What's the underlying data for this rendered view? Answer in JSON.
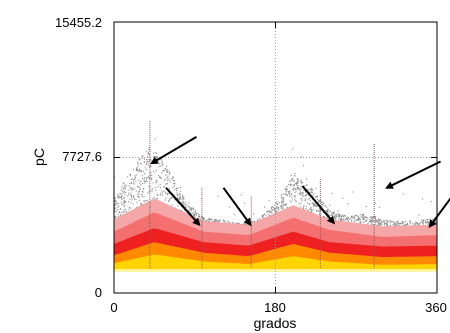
{
  "chart_data": {
    "type": "scatter",
    "title": "",
    "xlabel": "grados",
    "ylabel": "pC",
    "xlim": [
      0,
      360
    ],
    "ylim": [
      0,
      15455.2
    ],
    "x_ticks": [
      0,
      180,
      360
    ],
    "x_tick_labels": [
      "0",
      "180",
      "360"
    ],
    "y_ticks": [
      0,
      7727.6,
      15455.2
    ],
    "y_tick_labels": [
      "0",
      "7727.6",
      "15455.2"
    ],
    "grid": "dotted at 180 and 7727.6",
    "density_bands": [
      {
        "color": "#fff4a0",
        "lower": [
          [
            0,
            1200
          ],
          [
            360,
            1200
          ]
        ],
        "upper": [
          [
            0,
            1350
          ],
          [
            360,
            1350
          ]
        ]
      },
      {
        "color": "#ffd400",
        "lower": [
          [
            0,
            1350
          ],
          [
            360,
            1350
          ]
        ],
        "upper": [
          [
            0,
            1700
          ],
          [
            45,
            2200
          ],
          [
            100,
            1800
          ],
          [
            150,
            1650
          ],
          [
            200,
            2100
          ],
          [
            240,
            1800
          ],
          [
            300,
            1600
          ],
          [
            360,
            1650
          ]
        ]
      },
      {
        "color": "#ff8a00",
        "lower": [
          [
            0,
            1600
          ],
          [
            360,
            1600
          ]
        ],
        "upper": [
          [
            0,
            2150
          ],
          [
            45,
            2900
          ],
          [
            100,
            2300
          ],
          [
            150,
            2100
          ],
          [
            200,
            2800
          ],
          [
            240,
            2300
          ],
          [
            300,
            2050
          ],
          [
            360,
            2100
          ]
        ]
      },
      {
        "color": "#ee2020",
        "lower": [
          [
            0,
            2000
          ],
          [
            360,
            2000
          ]
        ],
        "upper": [
          [
            0,
            2800
          ],
          [
            45,
            3700
          ],
          [
            100,
            2900
          ],
          [
            150,
            2700
          ],
          [
            200,
            3500
          ],
          [
            240,
            2900
          ],
          [
            300,
            2650
          ],
          [
            360,
            2700
          ]
        ]
      },
      {
        "color": "#f47070",
        "lower": [
          [
            0,
            2600
          ],
          [
            360,
            2600
          ]
        ],
        "upper": [
          [
            0,
            3500
          ],
          [
            45,
            4600
          ],
          [
            100,
            3500
          ],
          [
            150,
            3300
          ],
          [
            200,
            4300
          ],
          [
            240,
            3600
          ],
          [
            300,
            3200
          ],
          [
            360,
            3300
          ]
        ]
      },
      {
        "color": "#f5a6a6",
        "lower": [
          [
            0,
            3200
          ],
          [
            360,
            3200
          ]
        ],
        "upper": [
          [
            0,
            4200
          ],
          [
            45,
            5400
          ],
          [
            100,
            4100
          ],
          [
            150,
            3900
          ],
          [
            200,
            5000
          ],
          [
            240,
            4200
          ],
          [
            300,
            3800
          ],
          [
            360,
            3900
          ]
        ]
      }
    ],
    "scatter_envelope": {
      "color": "#8c8c8c",
      "upper": [
        [
          0,
          5400
        ],
        [
          20,
          7200
        ],
        [
          40,
          8400
        ],
        [
          60,
          7200
        ],
        [
          80,
          5200
        ],
        [
          100,
          4300
        ],
        [
          120,
          4200
        ],
        [
          140,
          4000
        ],
        [
          160,
          4200
        ],
        [
          180,
          5200
        ],
        [
          200,
          6800
        ],
        [
          220,
          6000
        ],
        [
          240,
          4700
        ],
        [
          260,
          4400
        ],
        [
          280,
          4600
        ],
        [
          300,
          4200
        ],
        [
          320,
          4100
        ],
        [
          340,
          4200
        ],
        [
          360,
          4300
        ]
      ],
      "lower": [
        [
          0,
          3500
        ],
        [
          45,
          4100
        ],
        [
          100,
          3300
        ],
        [
          150,
          3100
        ],
        [
          200,
          3900
        ],
        [
          240,
          3400
        ],
        [
          300,
          3000
        ],
        [
          360,
          3100
        ]
      ]
    },
    "spikes": [
      {
        "x": 40,
        "top": 9800
      },
      {
        "x": 98,
        "top": 6000
      },
      {
        "x": 153,
        "top": 5500
      },
      {
        "x": 230,
        "top": 6500
      },
      {
        "x": 290,
        "top": 8500
      }
    ],
    "annotations": [
      {
        "type": "arrow",
        "from": [
          92,
          8900
        ],
        "to": [
          42,
          7400
        ]
      },
      {
        "type": "arrow",
        "from": [
          58,
          6000
        ],
        "to": [
          95,
          3900
        ]
      },
      {
        "type": "arrow",
        "from": [
          122,
          6000
        ],
        "to": [
          152,
          3900
        ]
      },
      {
        "type": "arrow",
        "from": [
          210,
          6100
        ],
        "to": [
          245,
          4000
        ]
      },
      {
        "type": "arrow",
        "from": [
          364,
          7500
        ],
        "to": [
          304,
          6000
        ]
      },
      {
        "type": "arrow",
        "from": [
          378,
          5600
        ],
        "to": [
          352,
          3800
        ]
      }
    ]
  }
}
